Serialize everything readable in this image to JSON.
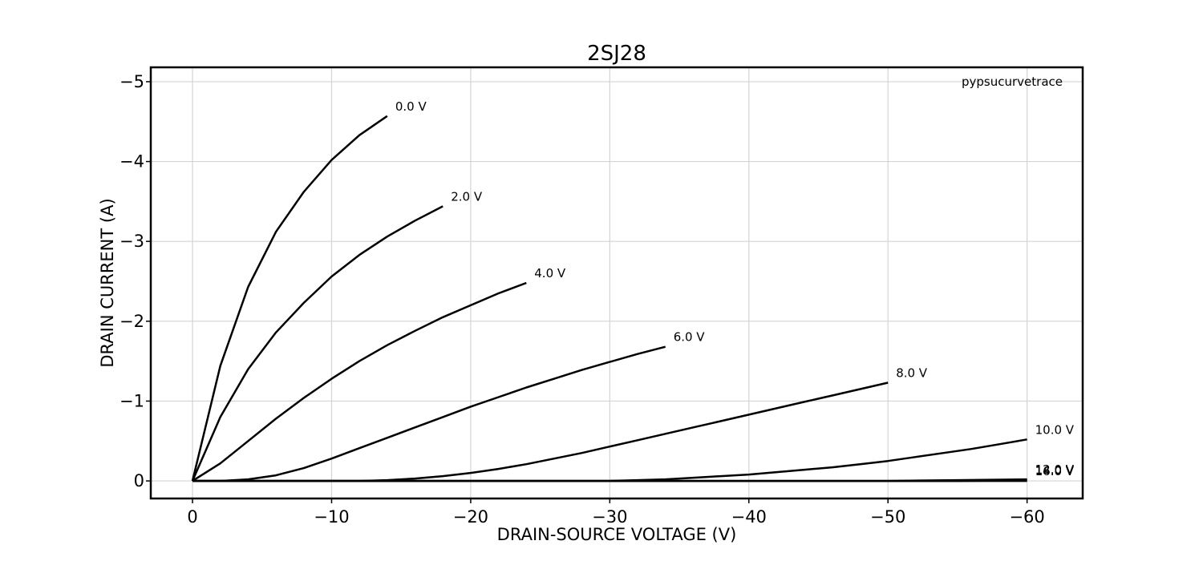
{
  "chart_data": {
    "type": "line",
    "title": "2SJ28",
    "xlabel": "DRAIN-SOURCE VOLTAGE (V)",
    "ylabel": "DRAIN CURRENT (A)",
    "annotation": "pypsucurvetrace",
    "xlim": [
      3,
      -64
    ],
    "ylim": [
      0.22,
      -5.18
    ],
    "xticks": [
      0,
      -10,
      -20,
      -30,
      -40,
      -50,
      -60
    ],
    "xtick_labels": [
      "0",
      "−10",
      "−20",
      "−30",
      "−40",
      "−50",
      "−60"
    ],
    "yticks": [
      0,
      -1,
      -2,
      -3,
      -4,
      -5
    ],
    "ytick_labels": [
      "0",
      "−1",
      "−2",
      "−3",
      "−4",
      "−5"
    ],
    "grid": true,
    "series": [
      {
        "name": "0.0 V",
        "x": [
          0,
          -2,
          -4,
          -6,
          -8,
          -10,
          -12,
          -14
        ],
        "y": [
          0,
          -1.44,
          -2.43,
          -3.12,
          -3.62,
          -4.02,
          -4.33,
          -4.57
        ]
      },
      {
        "name": "2.0 V",
        "x": [
          0,
          -2,
          -4,
          -6,
          -8,
          -10,
          -12,
          -14,
          -16,
          -18
        ],
        "y": [
          0,
          -0.8,
          -1.4,
          -1.86,
          -2.23,
          -2.56,
          -2.83,
          -3.06,
          -3.26,
          -3.44
        ]
      },
      {
        "name": "4.0 V",
        "x": [
          0,
          -2,
          -4,
          -6,
          -8,
          -10,
          -12,
          -14,
          -16,
          -18,
          -20,
          -22,
          -24
        ],
        "y": [
          0,
          -0.22,
          -0.5,
          -0.78,
          -1.04,
          -1.28,
          -1.5,
          -1.7,
          -1.88,
          -2.05,
          -2.2,
          -2.35,
          -2.48
        ]
      },
      {
        "name": "6.0 V",
        "x": [
          0,
          -2,
          -4,
          -6,
          -8,
          -10,
          -12,
          -14,
          -16,
          -18,
          -20,
          -22,
          -24,
          -26,
          -28,
          -30,
          -32,
          -34
        ],
        "y": [
          0,
          0,
          -0.02,
          -0.07,
          -0.16,
          -0.28,
          -0.41,
          -0.54,
          -0.67,
          -0.8,
          -0.93,
          -1.05,
          -1.17,
          -1.28,
          -1.39,
          -1.49,
          -1.59,
          -1.68
        ]
      },
      {
        "name": "8.0 V",
        "x": [
          0,
          -10,
          -12,
          -14,
          -16,
          -18,
          -20,
          -22,
          -24,
          -26,
          -28,
          -30,
          -32,
          -34,
          -36,
          -38,
          -40,
          -42,
          -44,
          -46,
          -48,
          -50
        ],
        "y": [
          0,
          0,
          0,
          -0.01,
          -0.03,
          -0.06,
          -0.1,
          -0.15,
          -0.21,
          -0.28,
          -0.35,
          -0.43,
          -0.51,
          -0.59,
          -0.67,
          -0.75,
          -0.83,
          -0.91,
          -0.99,
          -1.07,
          -1.15,
          -1.23
        ]
      },
      {
        "name": "10.0 V",
        "x": [
          0,
          -30,
          -32,
          -34,
          -36,
          -38,
          -40,
          -42,
          -44,
          -46,
          -48,
          -50,
          -52,
          -54,
          -56,
          -58,
          -60
        ],
        "y": [
          0,
          0,
          -0.01,
          -0.02,
          -0.04,
          -0.06,
          -0.08,
          -0.11,
          -0.14,
          -0.17,
          -0.21,
          -0.25,
          -0.3,
          -0.35,
          -0.4,
          -0.46,
          -0.52
        ]
      },
      {
        "name": "12.0 V",
        "x": [
          0,
          -50,
          -55,
          -60
        ],
        "y": [
          0,
          0,
          -0.01,
          -0.02
        ]
      },
      {
        "name": "14.0 V",
        "x": [
          0,
          -55,
          -60
        ],
        "y": [
          0,
          0,
          -0.01
        ]
      },
      {
        "name": "16.0 V",
        "x": [
          0,
          -60
        ],
        "y": [
          0,
          0
        ]
      }
    ]
  }
}
